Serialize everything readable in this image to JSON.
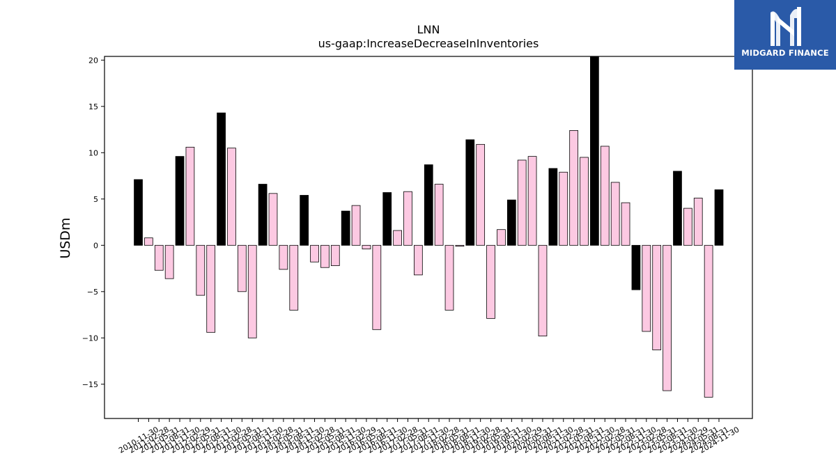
{
  "chart_data": {
    "type": "bar",
    "title": "LNN",
    "subtitle": "us-gaap:IncreaseDecreaseInInventories",
    "xlabel": "",
    "ylabel": "USDm",
    "ylim": [
      -18.7,
      20.4
    ],
    "yticks": [
      -15,
      -10,
      -5,
      0,
      5,
      10,
      15,
      20
    ],
    "grid": false,
    "colors": {
      "annual": "#000000",
      "quarterly": "#fcc9e2",
      "edge": "#000000"
    },
    "categories": [
      "2010-11-30",
      "2011-02-28",
      "2011-05-31",
      "2011-08-31",
      "2011-11-30",
      "2012-02-29",
      "2012-05-31",
      "2012-08-31",
      "2012-11-30",
      "2013-02-28",
      "2013-05-31",
      "2013-08-31",
      "2013-11-30",
      "2014-02-28",
      "2014-05-31",
      "2014-08-31",
      "2014-11-30",
      "2015-02-28",
      "2015-05-31",
      "2015-08-31",
      "2015-11-30",
      "2016-02-29",
      "2016-05-31",
      "2016-08-31",
      "2016-11-30",
      "2017-02-28",
      "2017-05-31",
      "2017-08-31",
      "2017-11-30",
      "2018-02-28",
      "2018-05-31",
      "2018-08-31",
      "2018-11-30",
      "2019-02-28",
      "2019-05-31",
      "2019-08-31",
      "2019-11-30",
      "2020-02-29",
      "2020-05-31",
      "2020-08-31",
      "2020-11-30",
      "2021-02-28",
      "2021-05-31",
      "2021-08-31",
      "2021-11-30",
      "2022-02-28",
      "2022-05-31",
      "2022-08-31",
      "2022-11-30",
      "2023-02-28",
      "2023-05-31",
      "2023-08-31",
      "2023-11-30",
      "2024-02-29",
      "2024-05-31",
      "2024-08-31",
      "2024-11-30"
    ],
    "values": [
      7.1,
      0.8,
      -2.7,
      -3.6,
      9.6,
      10.6,
      -5.4,
      -9.4,
      14.3,
      10.5,
      -5.0,
      -10.0,
      6.6,
      5.6,
      -2.6,
      -7.0,
      5.4,
      -1.8,
      -2.4,
      -2.2,
      3.7,
      4.3,
      -0.4,
      -9.1,
      5.7,
      1.6,
      5.8,
      -3.2,
      8.7,
      6.6,
      -7.0,
      -0.1,
      11.4,
      10.9,
      -7.9,
      1.7,
      4.9,
      9.2,
      9.6,
      -9.8,
      8.3,
      7.9,
      12.4,
      9.5,
      20.4,
      10.7,
      6.8,
      4.6,
      -4.8,
      -9.3,
      -11.3,
      -15.7,
      8.0,
      4.0,
      5.1,
      -16.4,
      6.0
    ],
    "is_annual": [
      true,
      false,
      false,
      false,
      true,
      false,
      false,
      false,
      true,
      false,
      false,
      false,
      true,
      false,
      false,
      false,
      true,
      false,
      false,
      false,
      true,
      false,
      false,
      false,
      true,
      false,
      false,
      false,
      true,
      false,
      false,
      false,
      true,
      false,
      false,
      false,
      true,
      false,
      false,
      false,
      true,
      false,
      false,
      false,
      true,
      false,
      false,
      false,
      true,
      false,
      false,
      false,
      true,
      false,
      false,
      false,
      true
    ]
  },
  "logo": {
    "text": "MIDGARD FINANCE",
    "icon": "midgard-m-icon"
  }
}
